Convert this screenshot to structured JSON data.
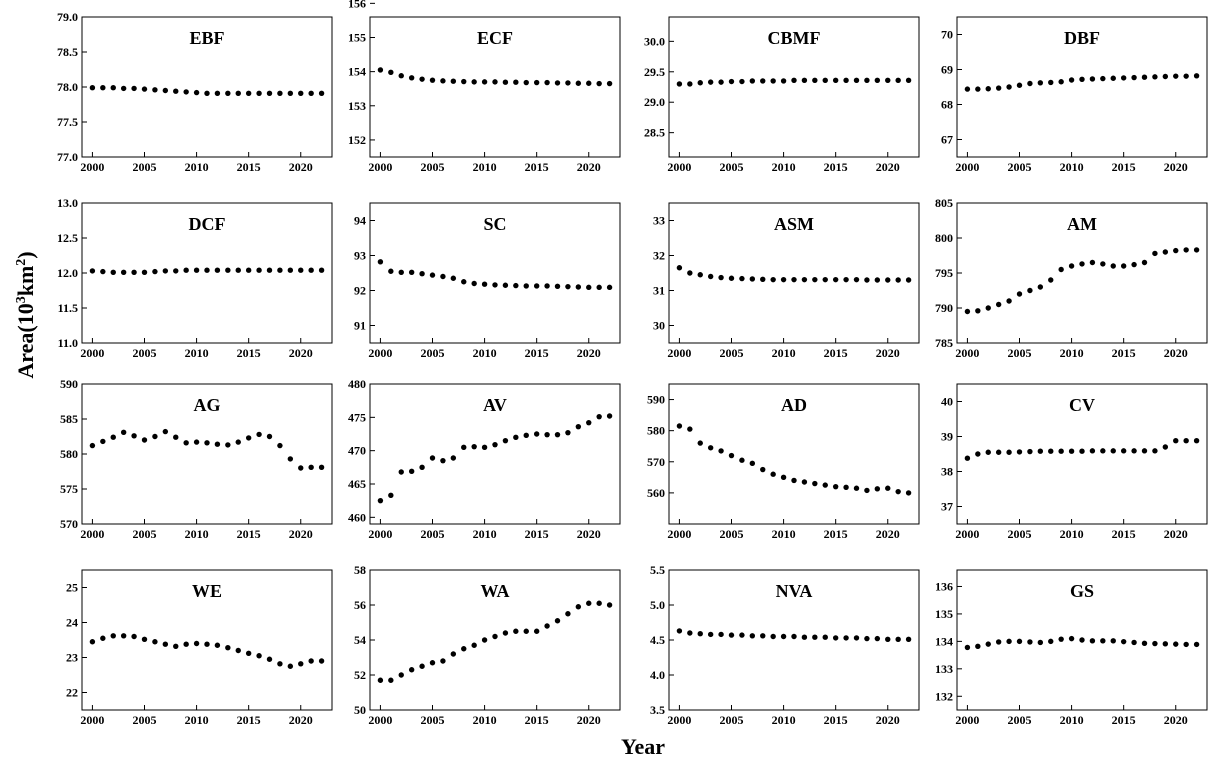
{
  "figure": {
    "xlabel": "Year",
    "ylabel_prefix": "Area(10",
    "ylabel_sup1": "3",
    "ylabel_mid": "km",
    "ylabel_sup2": "2",
    "ylabel_suffix": ")",
    "point_color": "#000000"
  },
  "chart_data": [
    {
      "type": "scatter",
      "title": "EBF",
      "xlim": [
        1999,
        2023
      ],
      "xticks": [
        2000,
        2005,
        2010,
        2015,
        2020
      ],
      "ylim": [
        77.0,
        79.0
      ],
      "yticks": [
        77.0,
        77.5,
        78.0,
        78.5,
        79.0
      ],
      "ytick_labels": [
        "77.0",
        "77.5",
        "78.0",
        "78.5",
        "79.0"
      ],
      "x": [
        2000,
        2001,
        2002,
        2003,
        2004,
        2005,
        2006,
        2007,
        2008,
        2009,
        2010,
        2011,
        2012,
        2013,
        2014,
        2015,
        2016,
        2017,
        2018,
        2019,
        2020,
        2021,
        2022
      ],
      "y": [
        77.99,
        77.99,
        77.99,
        77.98,
        77.98,
        77.97,
        77.96,
        77.95,
        77.94,
        77.93,
        77.92,
        77.91,
        77.91,
        77.91,
        77.91,
        77.91,
        77.91,
        77.91,
        77.91,
        77.91,
        77.91,
        77.91,
        77.91
      ]
    },
    {
      "type": "scatter",
      "title": "ECF",
      "xlim": [
        1999,
        2023
      ],
      "xticks": [
        2000,
        2005,
        2010,
        2015,
        2020
      ],
      "ylim": [
        151.5,
        155.6
      ],
      "yticks": [
        152,
        153,
        154,
        155,
        156
      ],
      "ytick_labels": [
        "152",
        "153",
        "154",
        "155",
        "156"
      ],
      "x": [
        2000,
        2001,
        2002,
        2003,
        2004,
        2005,
        2006,
        2007,
        2008,
        2009,
        2010,
        2011,
        2012,
        2013,
        2014,
        2015,
        2016,
        2017,
        2018,
        2019,
        2020,
        2021,
        2022
      ],
      "y": [
        154.05,
        153.98,
        153.88,
        153.82,
        153.78,
        153.75,
        153.73,
        153.72,
        153.71,
        153.7,
        153.7,
        153.7,
        153.69,
        153.69,
        153.68,
        153.68,
        153.68,
        153.67,
        153.67,
        153.66,
        153.66,
        153.65,
        153.65
      ]
    },
    {
      "type": "scatter",
      "title": "CBMF",
      "xlim": [
        1999,
        2023
      ],
      "xticks": [
        2000,
        2005,
        2010,
        2015,
        2020
      ],
      "ylim": [
        28.1,
        30.4
      ],
      "yticks": [
        28.5,
        29.0,
        29.5,
        30.0
      ],
      "ytick_labels": [
        "28.5",
        "29.0",
        "29.5",
        "30.0"
      ],
      "x": [
        2000,
        2001,
        2002,
        2003,
        2004,
        2005,
        2006,
        2007,
        2008,
        2009,
        2010,
        2011,
        2012,
        2013,
        2014,
        2015,
        2016,
        2017,
        2018,
        2019,
        2020,
        2021,
        2022
      ],
      "y": [
        29.3,
        29.3,
        29.32,
        29.33,
        29.33,
        29.34,
        29.34,
        29.35,
        29.35,
        29.35,
        29.35,
        29.36,
        29.36,
        29.36,
        29.36,
        29.36,
        29.36,
        29.36,
        29.36,
        29.36,
        29.36,
        29.36,
        29.36
      ]
    },
    {
      "type": "scatter",
      "title": "DBF",
      "xlim": [
        1999,
        2023
      ],
      "xticks": [
        2000,
        2005,
        2010,
        2015,
        2020
      ],
      "ylim": [
        66.5,
        70.5
      ],
      "yticks": [
        67,
        68,
        69,
        70
      ],
      "ytick_labels": [
        "67",
        "68",
        "69",
        "70"
      ],
      "x": [
        2000,
        2001,
        2002,
        2003,
        2004,
        2005,
        2006,
        2007,
        2008,
        2009,
        2010,
        2011,
        2012,
        2013,
        2014,
        2015,
        2016,
        2017,
        2018,
        2019,
        2020,
        2021,
        2022
      ],
      "y": [
        68.44,
        68.44,
        68.45,
        68.47,
        68.5,
        68.55,
        68.6,
        68.62,
        68.63,
        68.65,
        68.7,
        68.72,
        68.73,
        68.74,
        68.75,
        68.76,
        68.77,
        68.78,
        68.79,
        68.8,
        68.81,
        68.81,
        68.82
      ]
    },
    {
      "type": "scatter",
      "title": "DCF",
      "xlim": [
        1999,
        2023
      ],
      "xticks": [
        2000,
        2005,
        2010,
        2015,
        2020
      ],
      "ylim": [
        11.0,
        13.0
      ],
      "yticks": [
        11.0,
        11.5,
        12.0,
        12.5,
        13.0
      ],
      "ytick_labels": [
        "11.0",
        "11.5",
        "12.0",
        "12.5",
        "13.0"
      ],
      "x": [
        2000,
        2001,
        2002,
        2003,
        2004,
        2005,
        2006,
        2007,
        2008,
        2009,
        2010,
        2011,
        2012,
        2013,
        2014,
        2015,
        2016,
        2017,
        2018,
        2019,
        2020,
        2021,
        2022
      ],
      "y": [
        12.03,
        12.02,
        12.01,
        12.01,
        12.01,
        12.01,
        12.02,
        12.03,
        12.03,
        12.04,
        12.04,
        12.04,
        12.04,
        12.04,
        12.04,
        12.04,
        12.04,
        12.04,
        12.04,
        12.04,
        12.04,
        12.04,
        12.04
      ]
    },
    {
      "type": "scatter",
      "title": "SC",
      "xlim": [
        1999,
        2023
      ],
      "xticks": [
        2000,
        2005,
        2010,
        2015,
        2020
      ],
      "ylim": [
        90.5,
        94.5
      ],
      "yticks": [
        91,
        92,
        93,
        94
      ],
      "ytick_labels": [
        "91",
        "92",
        "93",
        "94"
      ],
      "x": [
        2000,
        2001,
        2002,
        2003,
        2004,
        2005,
        2006,
        2007,
        2008,
        2009,
        2010,
        2011,
        2012,
        2013,
        2014,
        2015,
        2016,
        2017,
        2018,
        2019,
        2020,
        2021,
        2022
      ],
      "y": [
        92.82,
        92.55,
        92.52,
        92.52,
        92.48,
        92.44,
        92.4,
        92.35,
        92.25,
        92.2,
        92.18,
        92.16,
        92.15,
        92.14,
        92.13,
        92.13,
        92.13,
        92.12,
        92.11,
        92.1,
        92.09,
        92.09,
        92.09
      ]
    },
    {
      "type": "scatter",
      "title": "ASM",
      "xlim": [
        1999,
        2023
      ],
      "xticks": [
        2000,
        2005,
        2010,
        2015,
        2020
      ],
      "ylim": [
        29.5,
        33.5
      ],
      "yticks": [
        30,
        31,
        32,
        33
      ],
      "ytick_labels": [
        "30",
        "31",
        "32",
        "33"
      ],
      "x": [
        2000,
        2001,
        2002,
        2003,
        2004,
        2005,
        2006,
        2007,
        2008,
        2009,
        2010,
        2011,
        2012,
        2013,
        2014,
        2015,
        2016,
        2017,
        2018,
        2019,
        2020,
        2021,
        2022
      ],
      "y": [
        31.65,
        31.5,
        31.45,
        31.4,
        31.37,
        31.35,
        31.34,
        31.33,
        31.32,
        31.31,
        31.31,
        31.31,
        31.31,
        31.31,
        31.31,
        31.31,
        31.31,
        31.31,
        31.3,
        31.3,
        31.3,
        31.3,
        31.3
      ]
    },
    {
      "type": "scatter",
      "title": "AM",
      "xlim": [
        1999,
        2023
      ],
      "xticks": [
        2000,
        2005,
        2010,
        2015,
        2020
      ],
      "ylim": [
        785,
        805
      ],
      "yticks": [
        785,
        790,
        795,
        800,
        805
      ],
      "ytick_labels": [
        "785",
        "790",
        "795",
        "800",
        "805"
      ],
      "x": [
        2000,
        2001,
        2002,
        2003,
        2004,
        2005,
        2006,
        2007,
        2008,
        2009,
        2010,
        2011,
        2012,
        2013,
        2014,
        2015,
        2016,
        2017,
        2018,
        2019,
        2020,
        2021,
        2022
      ],
      "y": [
        789.5,
        789.6,
        790.0,
        790.5,
        791.0,
        792.0,
        792.5,
        793.0,
        794.0,
        795.5,
        796.0,
        796.3,
        796.5,
        796.3,
        796.0,
        796.0,
        796.2,
        796.5,
        797.8,
        798.0,
        798.2,
        798.3,
        798.3
      ]
    },
    {
      "type": "scatter",
      "title": "AG",
      "xlim": [
        1999,
        2023
      ],
      "xticks": [
        2000,
        2005,
        2010,
        2015,
        2020
      ],
      "ylim": [
        570,
        590
      ],
      "yticks": [
        570,
        575,
        580,
        585,
        590
      ],
      "ytick_labels": [
        "570",
        "575",
        "580",
        "585",
        "590"
      ],
      "x": [
        2000,
        2001,
        2002,
        2003,
        2004,
        2005,
        2006,
        2007,
        2008,
        2009,
        2010,
        2011,
        2012,
        2013,
        2014,
        2015,
        2016,
        2017,
        2018,
        2019,
        2020,
        2021,
        2022
      ],
      "y": [
        581.2,
        581.8,
        582.4,
        583.1,
        582.6,
        582.0,
        582.5,
        583.2,
        582.4,
        581.6,
        581.7,
        581.6,
        581.4,
        581.3,
        581.7,
        582.3,
        582.8,
        582.5,
        581.2,
        579.3,
        578.0,
        578.1,
        578.1
      ]
    },
    {
      "type": "scatter",
      "title": "AV",
      "xlim": [
        1999,
        2023
      ],
      "xticks": [
        2000,
        2005,
        2010,
        2015,
        2020
      ],
      "ylim": [
        459,
        480
      ],
      "yticks": [
        460,
        465,
        470,
        475,
        480
      ],
      "ytick_labels": [
        "460",
        "465",
        "470",
        "475",
        "480"
      ],
      "x": [
        2000,
        2001,
        2002,
        2003,
        2004,
        2005,
        2006,
        2007,
        2008,
        2009,
        2010,
        2011,
        2012,
        2013,
        2014,
        2015,
        2016,
        2017,
        2018,
        2019,
        2020,
        2021,
        2022
      ],
      "y": [
        462.5,
        463.3,
        466.8,
        466.9,
        467.5,
        468.9,
        468.5,
        468.9,
        470.5,
        470.6,
        470.5,
        470.9,
        471.5,
        472.0,
        472.3,
        472.5,
        472.4,
        472.4,
        472.7,
        473.6,
        474.2,
        475.1,
        475.2
      ]
    },
    {
      "type": "scatter",
      "title": "AD",
      "xlim": [
        1999,
        2023
      ],
      "xticks": [
        2000,
        2005,
        2010,
        2015,
        2020
      ],
      "ylim": [
        550,
        595
      ],
      "yticks": [
        560,
        570,
        580,
        590
      ],
      "ytick_labels": [
        "560",
        "570",
        "580",
        "590"
      ],
      "x": [
        2000,
        2001,
        2002,
        2003,
        2004,
        2005,
        2006,
        2007,
        2008,
        2009,
        2010,
        2011,
        2012,
        2013,
        2014,
        2015,
        2016,
        2017,
        2018,
        2019,
        2020,
        2021,
        2022
      ],
      "y": [
        581.5,
        580.5,
        576.0,
        574.5,
        573.5,
        572.0,
        570.5,
        569.5,
        567.5,
        566.0,
        565.0,
        564.0,
        563.5,
        563.0,
        562.5,
        562.0,
        561.8,
        561.5,
        560.8,
        561.3,
        561.5,
        560.4,
        560.0
      ]
    },
    {
      "type": "scatter",
      "title": "CV",
      "xlim": [
        1999,
        2023
      ],
      "xticks": [
        2000,
        2005,
        2010,
        2015,
        2020
      ],
      "ylim": [
        36.5,
        40.5
      ],
      "yticks": [
        37,
        38,
        39,
        40
      ],
      "ytick_labels": [
        "37",
        "38",
        "39",
        "40"
      ],
      "x": [
        2000,
        2001,
        2002,
        2003,
        2004,
        2005,
        2006,
        2007,
        2008,
        2009,
        2010,
        2011,
        2012,
        2013,
        2014,
        2015,
        2016,
        2017,
        2018,
        2019,
        2020,
        2021,
        2022
      ],
      "y": [
        38.38,
        38.5,
        38.55,
        38.55,
        38.55,
        38.56,
        38.57,
        38.58,
        38.58,
        38.58,
        38.58,
        38.58,
        38.59,
        38.59,
        38.59,
        38.59,
        38.59,
        38.59,
        38.59,
        38.7,
        38.88,
        38.88,
        38.88
      ]
    },
    {
      "type": "scatter",
      "title": "WE",
      "xlim": [
        1999,
        2023
      ],
      "xticks": [
        2000,
        2005,
        2010,
        2015,
        2020
      ],
      "ylim": [
        21.5,
        25.5
      ],
      "yticks": [
        22,
        23,
        24,
        25
      ],
      "ytick_labels": [
        "22",
        "23",
        "24",
        "25"
      ],
      "x": [
        2000,
        2001,
        2002,
        2003,
        2004,
        2005,
        2006,
        2007,
        2008,
        2009,
        2010,
        2011,
        2012,
        2013,
        2014,
        2015,
        2016,
        2017,
        2018,
        2019,
        2020,
        2021,
        2022
      ],
      "y": [
        23.45,
        23.55,
        23.62,
        23.62,
        23.6,
        23.52,
        23.45,
        23.38,
        23.32,
        23.38,
        23.4,
        23.38,
        23.35,
        23.28,
        23.2,
        23.12,
        23.05,
        22.95,
        22.82,
        22.75,
        22.82,
        22.9,
        22.9
      ]
    },
    {
      "type": "scatter",
      "title": "WA",
      "xlim": [
        1999,
        2023
      ],
      "xticks": [
        2000,
        2005,
        2010,
        2015,
        2020
      ],
      "ylim": [
        50,
        58
      ],
      "yticks": [
        50,
        52,
        54,
        56,
        58
      ],
      "ytick_labels": [
        "50",
        "52",
        "54",
        "56",
        "58"
      ],
      "x": [
        2000,
        2001,
        2002,
        2003,
        2004,
        2005,
        2006,
        2007,
        2008,
        2009,
        2010,
        2011,
        2012,
        2013,
        2014,
        2015,
        2016,
        2017,
        2018,
        2019,
        2020,
        2021,
        2022
      ],
      "y": [
        51.7,
        51.7,
        52.0,
        52.3,
        52.5,
        52.7,
        52.8,
        53.2,
        53.5,
        53.7,
        54.0,
        54.2,
        54.4,
        54.5,
        54.5,
        54.5,
        54.8,
        55.1,
        55.5,
        55.9,
        56.1,
        56.1,
        56.0
      ]
    },
    {
      "type": "scatter",
      "title": "NVA",
      "xlim": [
        1999,
        2023
      ],
      "xticks": [
        2000,
        2005,
        2010,
        2015,
        2020
      ],
      "ylim": [
        3.5,
        5.5
      ],
      "yticks": [
        3.5,
        4.0,
        4.5,
        5.0,
        5.5
      ],
      "ytick_labels": [
        "3.5",
        "4.0",
        "4.5",
        "5.0",
        "5.5"
      ],
      "x": [
        2000,
        2001,
        2002,
        2003,
        2004,
        2005,
        2006,
        2007,
        2008,
        2009,
        2010,
        2011,
        2012,
        2013,
        2014,
        2015,
        2016,
        2017,
        2018,
        2019,
        2020,
        2021,
        2022
      ],
      "y": [
        4.63,
        4.6,
        4.59,
        4.58,
        4.58,
        4.57,
        4.57,
        4.56,
        4.56,
        4.55,
        4.55,
        4.55,
        4.54,
        4.54,
        4.54,
        4.53,
        4.53,
        4.53,
        4.52,
        4.52,
        4.51,
        4.51,
        4.51
      ]
    },
    {
      "type": "scatter",
      "title": "GS",
      "xlim": [
        1999,
        2023
      ],
      "xticks": [
        2000,
        2005,
        2010,
        2015,
        2020
      ],
      "ylim": [
        131.5,
        136.6
      ],
      "yticks": [
        132,
        133,
        134,
        135,
        136
      ],
      "ytick_labels": [
        "132",
        "133",
        "134",
        "135",
        "136"
      ],
      "x": [
        2000,
        2001,
        2002,
        2003,
        2004,
        2005,
        2006,
        2007,
        2008,
        2009,
        2010,
        2011,
        2012,
        2013,
        2014,
        2015,
        2016,
        2017,
        2018,
        2019,
        2020,
        2021,
        2022
      ],
      "y": [
        133.78,
        133.82,
        133.9,
        133.98,
        134.0,
        134.0,
        133.98,
        133.96,
        134.0,
        134.08,
        134.1,
        134.05,
        134.02,
        134.02,
        134.02,
        133.99,
        133.96,
        133.93,
        133.92,
        133.91,
        133.9,
        133.89,
        133.89
      ]
    }
  ]
}
